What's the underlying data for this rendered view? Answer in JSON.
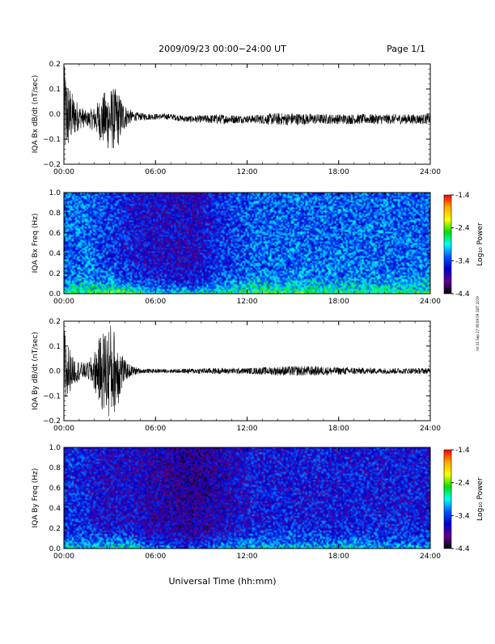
{
  "header": {
    "title": "2009/09/23  00:00−24:00 UT",
    "page": "Page 1/1"
  },
  "x_axis_label": "Universal Time (hh:mm)",
  "side_stamp": "mt 01 Sep 27 09:09:59 GDT 2019",
  "colors": {
    "trace": "#000000",
    "axis": "#000000",
    "background": "#ffffff"
  },
  "colorbar": {
    "label": "Log₁₀ Power",
    "ticks": [
      "-1.4",
      "-2.4",
      "-3.4",
      "-4.4"
    ],
    "stops": [
      "#ff0000",
      "#ffaa00",
      "#ffff00",
      "#00e000",
      "#00ffff",
      "#0055ff",
      "#0000cc",
      "#600090",
      "#000000"
    ]
  },
  "chart_data": [
    {
      "type": "line",
      "ylabel": "IQA Bx dB/dt (nT/sec)",
      "x_ticks": [
        "00:00",
        "06:00",
        "12:00",
        "18:00",
        "24:00"
      ],
      "xlim": [
        "00:00",
        "24:00"
      ],
      "ylim": [
        -0.2,
        0.2
      ],
      "y_ticks": [
        "0.2",
        "0.1",
        "0.0",
        "−0.1",
        "−0.2"
      ],
      "series": [
        {
          "x": [
            "00:00",
            "00:30",
            "01:00",
            "01:30",
            "02:00",
            "02:30",
            "03:00",
            "03:30",
            "04:00",
            "04:30",
            "05:00",
            "06:00",
            "07:00",
            "08:00",
            "09:00",
            "10:00",
            "11:00",
            "12:00",
            "13:00",
            "14:00",
            "15:00",
            "16:00",
            "17:00",
            "18:00",
            "19:00",
            "20:00",
            "21:00",
            "22:00",
            "23:00",
            "24:00"
          ],
          "amplitude": [
            0.2,
            0.1,
            0.05,
            0.03,
            0.05,
            0.1,
            0.13,
            0.12,
            0.05,
            0.02,
            0.015,
            0.012,
            0.012,
            0.013,
            0.015,
            0.02,
            0.018,
            0.015,
            0.02,
            0.025,
            0.025,
            0.022,
            0.02,
            0.02,
            0.02,
            0.02,
            0.02,
            0.02,
            0.02,
            0.02
          ],
          "offset": [
            0.0,
            -0.01,
            -0.01,
            -0.02,
            -0.02,
            -0.02,
            -0.02,
            -0.02,
            -0.01,
            -0.01,
            -0.01,
            -0.01,
            -0.01,
            -0.02,
            -0.02,
            -0.02,
            -0.02,
            -0.02,
            -0.02,
            -0.02,
            -0.02,
            -0.02,
            -0.02,
            -0.02,
            -0.02,
            -0.02,
            -0.02,
            -0.02,
            -0.02,
            -0.02
          ]
        }
      ]
    },
    {
      "type": "heatmap",
      "ylabel": "IQA Bx Freq (Hz)",
      "x_ticks": [
        "00:00",
        "06:00",
        "12:00",
        "18:00",
        "24:00"
      ],
      "xlim": [
        "00:00",
        "24:00"
      ],
      "ylim": [
        0.0,
        1.0
      ],
      "y_ticks": [
        "1.0",
        "0.8",
        "0.6",
        "0.4",
        "0.2",
        "0.0"
      ],
      "zlim": [
        -4.4,
        -1.4
      ],
      "background_power_by_hour": [
        -3.3,
        -3.3,
        -3.4,
        -3.5,
        -3.6,
        -3.7,
        -3.7,
        -3.75,
        -3.75,
        -3.6,
        -3.5,
        -3.4,
        -3.3,
        -3.3,
        -3.3,
        -3.3,
        -3.3,
        -3.3,
        -3.3,
        -3.3,
        -3.3,
        -3.3,
        -3.3,
        -3.3
      ],
      "low_freq_power_by_hour": [
        -2.6,
        -2.6,
        -2.5,
        -2.3,
        -2.5,
        -2.8,
        -2.9,
        -2.9,
        -2.9,
        -2.8,
        -2.7,
        -2.6,
        -2.5,
        -2.5,
        -2.5,
        -2.5,
        -2.5,
        -2.5,
        -2.6,
        -2.6,
        -2.6,
        -2.6,
        -2.6,
        -2.6
      ]
    },
    {
      "type": "line",
      "ylabel": "IQA By dB/dt (nT/sec)",
      "x_ticks": [
        "00:00",
        "06:00",
        "12:00",
        "18:00",
        "24:00"
      ],
      "xlim": [
        "00:00",
        "24:00"
      ],
      "ylim": [
        -0.2,
        0.2
      ],
      "y_ticks": [
        "0.2",
        "0.1",
        "0.0",
        "−0.1",
        "−0.2"
      ],
      "series": [
        {
          "x": [
            "00:00",
            "00:30",
            "01:00",
            "01:30",
            "02:00",
            "02:30",
            "03:00",
            "03:30",
            "04:00",
            "04:30",
            "05:00",
            "06:00",
            "07:00",
            "08:00",
            "09:00",
            "10:00",
            "11:00",
            "12:00",
            "13:00",
            "14:00",
            "15:00",
            "16:00",
            "17:00",
            "18:00",
            "19:00",
            "20:00",
            "21:00",
            "22:00",
            "23:00",
            "24:00"
          ],
          "amplitude": [
            0.2,
            0.06,
            0.04,
            0.03,
            0.08,
            0.16,
            0.2,
            0.15,
            0.04,
            0.02,
            0.01,
            0.008,
            0.008,
            0.01,
            0.012,
            0.012,
            0.012,
            0.012,
            0.015,
            0.018,
            0.02,
            0.02,
            0.018,
            0.015,
            0.015,
            0.012,
            0.012,
            0.012,
            0.012,
            0.012
          ],
          "offset": [
            0.0,
            0.0,
            0.0,
            0.0,
            0.0,
            0.0,
            0.0,
            0.0,
            0.0,
            0.0,
            0.0,
            0.0,
            0.0,
            0.0,
            0.0,
            0.0,
            0.0,
            0.0,
            0.0,
            0.0,
            0.0,
            0.0,
            0.0,
            0.0,
            0.0,
            0.0,
            0.0,
            0.0,
            0.0,
            0.0
          ]
        }
      ]
    },
    {
      "type": "heatmap",
      "ylabel": "IQA By Freq (Hz)",
      "x_ticks": [
        "00:00",
        "06:00",
        "12:00",
        "18:00",
        "24:00"
      ],
      "xlim": [
        "00:00",
        "24:00"
      ],
      "ylim": [
        0.0,
        1.0
      ],
      "y_ticks": [
        "1.0",
        "0.8",
        "0.6",
        "0.4",
        "0.2",
        "0.0"
      ],
      "zlim": [
        -4.4,
        -1.4
      ],
      "background_power_by_hour": [
        -3.5,
        -3.6,
        -3.7,
        -3.7,
        -3.7,
        -3.8,
        -3.85,
        -3.9,
        -3.95,
        -3.9,
        -3.8,
        -3.7,
        -3.6,
        -3.6,
        -3.6,
        -3.6,
        -3.6,
        -3.6,
        -3.6,
        -3.6,
        -3.6,
        -3.6,
        -3.6,
        -3.6
      ],
      "low_freq_power_by_hour": [
        -2.9,
        -2.9,
        -2.8,
        -2.7,
        -2.8,
        -3.1,
        -3.2,
        -3.3,
        -3.2,
        -3.1,
        -3.0,
        -2.9,
        -2.9,
        -2.9,
        -2.9,
        -2.9,
        -2.9,
        -2.9,
        -2.9,
        -3.0,
        -3.0,
        -3.0,
        -3.0,
        -3.0
      ]
    }
  ]
}
